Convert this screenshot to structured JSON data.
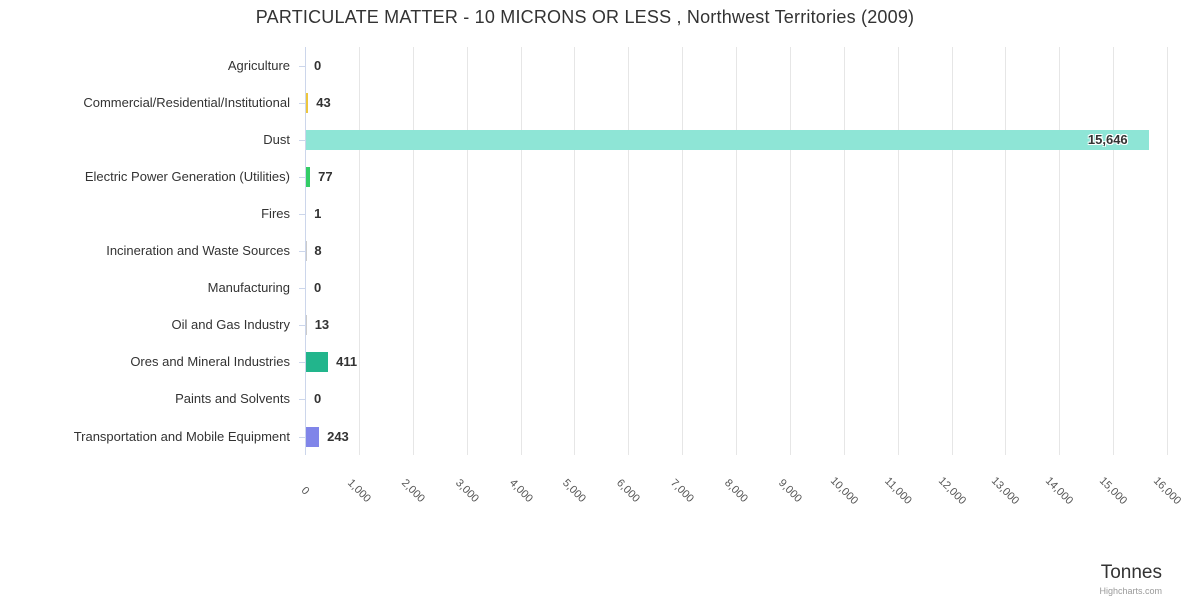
{
  "title": "PARTICULATE MATTER - 10 MICRONS OR LESS , Northwest Territories (2009)",
  "credit": "Highcharts.com",
  "colors": {
    "grid": "#e6e6e6",
    "axis": "#ccd6eb",
    "text": "#333333",
    "credit": "#999999"
  },
  "chart_data": {
    "type": "bar",
    "orientation": "horizontal",
    "title": "PARTICULATE MATTER - 10 MICRONS OR LESS , Northwest Territories (2009)",
    "xlabel": "Tonnes",
    "ylabel": "",
    "xlim": [
      0,
      16000
    ],
    "x_tick_interval": 1000,
    "x_tick_labels": [
      "0",
      "1,000",
      "2,000",
      "3,000",
      "4,000",
      "5,000",
      "6,000",
      "7,000",
      "8,000",
      "9,000",
      "10,000",
      "11,000",
      "12,000",
      "13,000",
      "14,000",
      "15,000",
      "16,000"
    ],
    "grid": true,
    "legend": false,
    "categories": [
      "Agriculture",
      "Commercial/Residential/Institutional",
      "Dust",
      "Electric Power Generation (Utilities)",
      "Fires",
      "Incineration and Waste Sources",
      "Manufacturing",
      "Oil and Gas Industry",
      "Ores and Mineral Industries",
      "Paints and Solvents",
      "Transportation and Mobile Equipment"
    ],
    "values": [
      0,
      43,
      15646,
      77,
      1,
      8,
      0,
      13,
      411,
      0,
      243
    ],
    "value_labels": [
      "0",
      "43",
      "15,646",
      "77",
      "1",
      "8",
      "0",
      "13",
      "411",
      "0",
      "243"
    ],
    "bar_colors": [
      null,
      "#edc63e",
      "#8ee5d6",
      "#33cc66",
      null,
      null,
      null,
      null,
      "#22b58c",
      null,
      "#8085e9"
    ]
  }
}
